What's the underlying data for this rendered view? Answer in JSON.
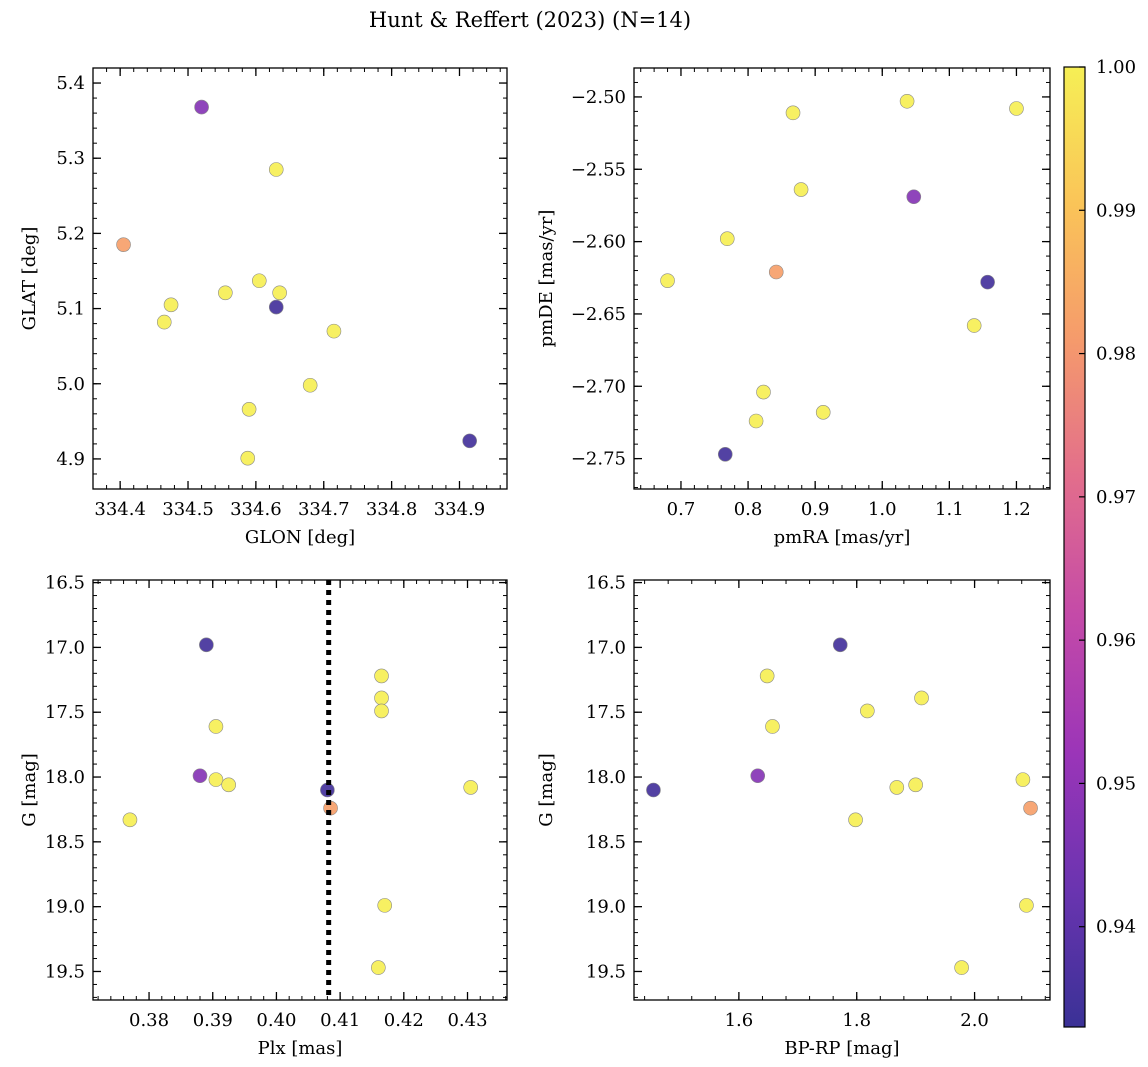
{
  "figure": {
    "title": "Hunt & Reffert (2023) (N=14)"
  },
  "colormap": {
    "name": "plasma",
    "range": [
      0.933,
      1.0
    ],
    "colorbar_ticks": [
      {
        "value": 0.94,
        "label": "0.94"
      },
      {
        "value": 0.95,
        "label": "0.95"
      },
      {
        "value": 0.96,
        "label": "0.96"
      },
      {
        "value": 0.97,
        "label": "0.97"
      },
      {
        "value": 0.98,
        "label": "0.98"
      },
      {
        "value": 0.99,
        "label": "0.99"
      },
      {
        "value": 1.0,
        "label": "1.00"
      }
    ],
    "stops": [
      "#3a3196",
      "#6a34b0",
      "#9b35b8",
      "#c44aa8",
      "#e26d8c",
      "#f59a6c",
      "#fac458",
      "#f6ef55"
    ]
  },
  "stars": {
    "prob": [
      0.948,
      0.935,
      0.982,
      1.0,
      1.0,
      1.0,
      1.0,
      1.0,
      1.0,
      1.0,
      1.0,
      1.0,
      1.0,
      0.935
    ],
    "glon": [
      334.52,
      334.63,
      334.405,
      334.63,
      334.465,
      334.475,
      334.555,
      334.605,
      334.635,
      334.715,
      334.68,
      334.59,
      334.588,
      334.915
    ],
    "glat": [
      5.368,
      5.102,
      5.185,
      5.285,
      5.082,
      5.105,
      5.121,
      5.137,
      5.121,
      5.07,
      4.998,
      4.966,
      4.901,
      4.924
    ],
    "pmra": [
      1.047,
      1.157,
      0.842,
      0.867,
      0.68,
      0.769,
      0.879,
      1.037,
      1.2,
      1.137,
      0.823,
      0.812,
      0.912,
      0.766
    ],
    "pmde": [
      -2.569,
      -2.628,
      -2.621,
      -2.511,
      -2.627,
      -2.598,
      -2.564,
      -2.503,
      -2.508,
      -2.658,
      -2.704,
      -2.724,
      -2.718,
      -2.747
    ],
    "plx": [
      0.388,
      0.389,
      0.4085,
      0.4165,
      0.377,
      0.3905,
      0.3905,
      0.3925,
      0.4165,
      0.417,
      0.4305,
      0.4165,
      0.416,
      0.408
    ],
    "gmag": [
      17.99,
      16.98,
      18.24,
      17.22,
      18.33,
      17.61,
      18.02,
      18.06,
      17.39,
      18.99,
      18.08,
      17.49,
      19.47,
      18.1
    ],
    "bprp": [
      1.632,
      1.772,
      2.095,
      1.648,
      1.798,
      1.657,
      2.082,
      1.9,
      1.91,
      2.088,
      1.868,
      1.818,
      1.978,
      1.455
    ]
  },
  "chart_data": [
    {
      "type": "scatter",
      "id": "glon_glat",
      "xlabel": "GLON [deg]",
      "ylabel": "GLAT [deg]",
      "xlim": [
        334.36,
        334.97
      ],
      "ylim": [
        4.86,
        5.42
      ],
      "xticks": [
        334.4,
        334.5,
        334.6,
        334.7,
        334.8,
        334.9
      ],
      "xticklabels": [
        "334.4",
        "334.5",
        "334.6",
        "334.7",
        "334.8",
        "334.9"
      ],
      "yticks": [
        4.9,
        5.0,
        5.1,
        5.2,
        5.3,
        5.4
      ],
      "yticklabels": [
        "4.9",
        "5.0",
        "5.1",
        "5.2",
        "5.3",
        "5.4"
      ],
      "x": "glon",
      "y": "glat",
      "y_inverted": false
    },
    {
      "type": "scatter",
      "id": "pmra_pmde",
      "xlabel": "pmRA [mas/yr]",
      "ylabel": "pmDE [mas/yr]",
      "xlim": [
        0.63,
        1.25
      ],
      "ylim": [
        -2.771,
        -2.48
      ],
      "xticks": [
        0.7,
        0.8,
        0.9,
        1.0,
        1.1,
        1.2
      ],
      "xticklabels": [
        "0.7",
        "0.8",
        "0.9",
        "1.0",
        "1.1",
        "1.2"
      ],
      "yticks": [
        -2.75,
        -2.7,
        -2.65,
        -2.6,
        -2.55,
        -2.5
      ],
      "yticklabels": [
        "−2.75",
        "−2.70",
        "−2.65",
        "−2.60",
        "−2.55",
        "−2.50"
      ],
      "x": "pmra",
      "y": "pmde",
      "y_inverted": false
    },
    {
      "type": "scatter",
      "id": "plx_g",
      "xlabel": "Plx [mas]",
      "ylabel": "G [mag]",
      "xlim": [
        0.3712,
        0.4362
      ],
      "ylim": [
        16.48,
        19.72
      ],
      "xticks": [
        0.38,
        0.39,
        0.4,
        0.41,
        0.42,
        0.43
      ],
      "xticklabels": [
        "0.38",
        "0.39",
        "0.40",
        "0.41",
        "0.42",
        "0.43"
      ],
      "yticks": [
        16.5,
        17.0,
        17.5,
        18.0,
        18.5,
        19.0,
        19.5
      ],
      "yticklabels": [
        "16.5",
        "17.0",
        "17.5",
        "18.0",
        "18.5",
        "19.0",
        "19.5"
      ],
      "x": "plx",
      "y": "gmag",
      "y_inverted": true,
      "vline": 0.4082
    },
    {
      "type": "scatter",
      "id": "bprp_g",
      "xlabel": "BP-RP [mag]",
      "ylabel": "G [mag]",
      "xlim": [
        1.422,
        2.128
      ],
      "ylim": [
        16.48,
        19.72
      ],
      "xticks": [
        1.6,
        1.8,
        2.0
      ],
      "xticklabels": [
        "1.6",
        "1.8",
        "2.0"
      ],
      "yticks": [
        16.5,
        17.0,
        17.5,
        18.0,
        18.5,
        19.0,
        19.5
      ],
      "yticklabels": [
        "16.5",
        "17.0",
        "17.5",
        "18.0",
        "18.5",
        "19.0",
        "19.5"
      ],
      "x": "bprp",
      "y": "gmag",
      "y_inverted": true
    }
  ]
}
